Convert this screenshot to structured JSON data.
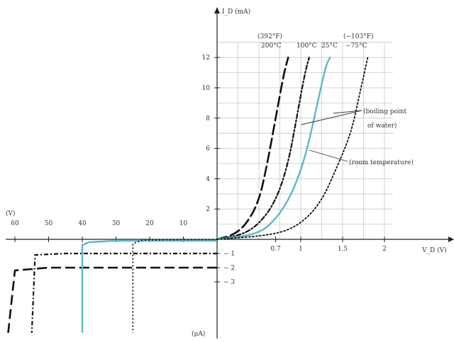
{
  "chart_data": {
    "type": "line",
    "y_axis_label": "I_D (mA)",
    "x_axis_label": "V_D (V)",
    "reverse_voltage_axis_label": "(V)",
    "reverse_current_axis_label": "(μA)",
    "grid": true,
    "forward_x_ticks": [
      {
        "value": 0.7,
        "label": "0.7"
      },
      {
        "value": 1,
        "label": "1"
      },
      {
        "value": 1.5,
        "label": "1.5"
      },
      {
        "value": 2,
        "label": "2"
      }
    ],
    "forward_y_ticks": [
      {
        "value": 2,
        "label": "2"
      },
      {
        "value": 4,
        "label": "4"
      },
      {
        "value": 6,
        "label": "6"
      },
      {
        "value": 8,
        "label": "8"
      },
      {
        "value": 10,
        "label": "10"
      },
      {
        "value": 12,
        "label": "12"
      }
    ],
    "reverse_x_ticks": [
      {
        "value": 10,
        "label": "10"
      },
      {
        "value": 20,
        "label": "20"
      },
      {
        "value": 30,
        "label": "30"
      },
      {
        "value": 40,
        "label": "40"
      },
      {
        "value": 50,
        "label": "50"
      },
      {
        "value": 60,
        "label": "60"
      }
    ],
    "reverse_y_ticks": [
      {
        "value": 1,
        "label": "1"
      },
      {
        "value": 2,
        "label": "2"
      },
      {
        "value": 3,
        "label": "3"
      }
    ],
    "series": [
      {
        "name": "200°C",
        "style": "dash-long",
        "color": "#111111",
        "forward": [
          [
            0,
            0
          ],
          [
            0.2,
            0.3
          ],
          [
            0.35,
            1.0
          ],
          [
            0.5,
            2.5
          ],
          [
            0.6,
            5.0
          ],
          [
            0.7,
            8.0
          ],
          [
            0.8,
            11.0
          ],
          [
            0.85,
            12.0
          ]
        ],
        "reverse": [
          [
            0,
            -2.0
          ],
          [
            5,
            -2.0
          ],
          [
            50,
            -2.0
          ],
          [
            60,
            -2.2
          ],
          [
            62,
            -5.0
          ]
        ]
      },
      {
        "name": "100°C",
        "style": "dash-dot",
        "color": "#111111",
        "forward": [
          [
            0,
            0
          ],
          [
            0.3,
            0.3
          ],
          [
            0.5,
            1.0
          ],
          [
            0.7,
            2.5
          ],
          [
            0.85,
            5.0
          ],
          [
            0.95,
            8.0
          ],
          [
            1.05,
            11.0
          ],
          [
            1.1,
            12.0
          ]
        ],
        "reverse": [
          [
            0,
            -1.0
          ],
          [
            5,
            -1.0
          ],
          [
            45,
            -1.0
          ],
          [
            54,
            -1.1
          ],
          [
            55,
            -5.0
          ]
        ]
      },
      {
        "name": "25°C",
        "style": "solid",
        "color": "#5bb8cc",
        "forward": [
          [
            0,
            0
          ],
          [
            0.45,
            0.3
          ],
          [
            0.65,
            1.0
          ],
          [
            0.85,
            2.5
          ],
          [
            1.0,
            4.5
          ],
          [
            1.1,
            6.5
          ],
          [
            1.2,
            9.0
          ],
          [
            1.3,
            11.5
          ],
          [
            1.35,
            12.0
          ]
        ],
        "reverse": [
          [
            0,
            -0.1
          ],
          [
            5,
            -0.1
          ],
          [
            30,
            -0.1
          ],
          [
            38,
            -0.2
          ],
          [
            40,
            -0.4
          ],
          [
            40,
            -5.0
          ]
        ]
      },
      {
        "name": "-75°C",
        "style": "dotted",
        "color": "#111111",
        "forward": [
          [
            0,
            0
          ],
          [
            0.7,
            0.3
          ],
          [
            1.0,
            1.0
          ],
          [
            1.25,
            2.5
          ],
          [
            1.45,
            5.0
          ],
          [
            1.6,
            7.0
          ],
          [
            1.7,
            9.5
          ],
          [
            1.8,
            12.0
          ]
        ],
        "reverse": [
          [
            0,
            -0.02
          ],
          [
            10,
            -0.02
          ],
          [
            22,
            -0.05
          ],
          [
            25,
            -0.3
          ],
          [
            25,
            -5.0
          ]
        ]
      }
    ],
    "temperature_labels": [
      {
        "text": "(392°F)"
      },
      {
        "text": "200°C"
      },
      {
        "text": "100°C"
      },
      {
        "text": "25°C"
      },
      {
        "text": "(−103°F)"
      },
      {
        "text": "−75°C"
      }
    ],
    "annotations": [
      {
        "text": "(boiling point"
      },
      {
        "text": "of water)"
      },
      {
        "text": "(room temperature)"
      }
    ]
  }
}
